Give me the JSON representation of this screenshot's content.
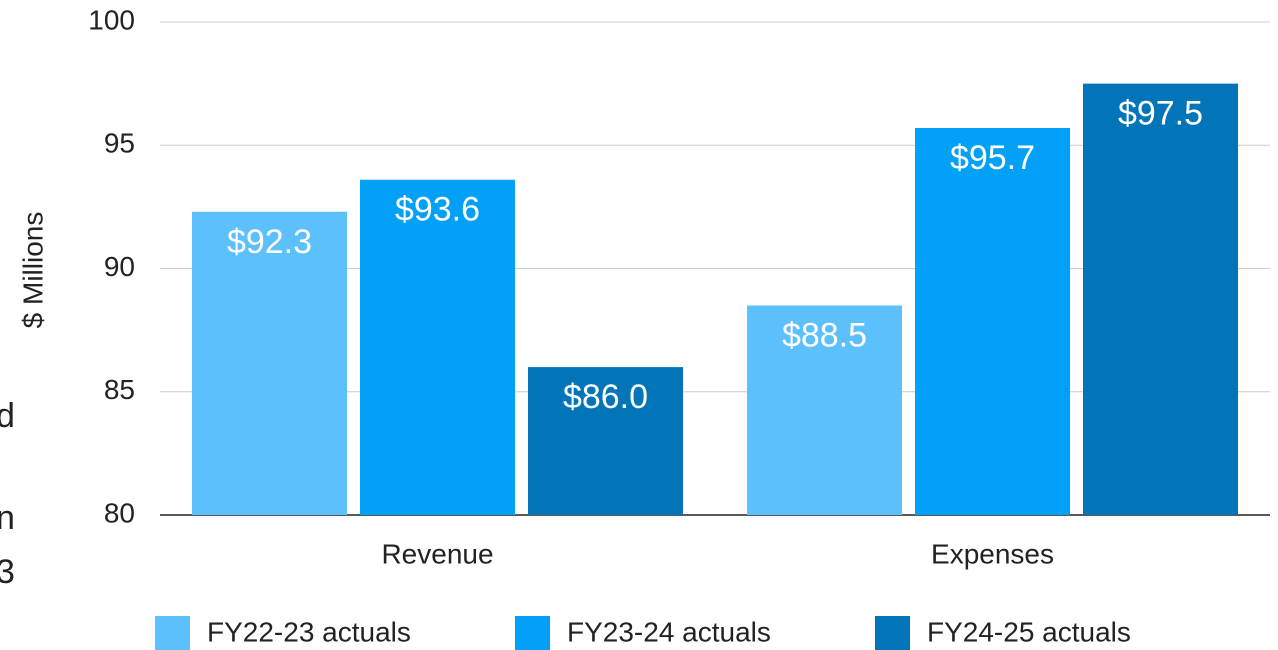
{
  "chart_data": {
    "type": "bar",
    "y_label": "$ Millions",
    "categories": [
      "Revenue",
      "Expenses"
    ],
    "series": [
      {
        "name": "FY22-23 actuals",
        "color": "#5bc0fb",
        "values": [
          92.3,
          88.5
        ],
        "value_labels": [
          "$92.3",
          "$88.5"
        ]
      },
      {
        "name": "FY23-24 actuals",
        "color": "#03a0f7",
        "values": [
          93.6,
          95.7
        ],
        "value_labels": [
          "$93.6",
          "$95.7"
        ]
      },
      {
        "name": "FY24-25 actuals",
        "color": "#0275b8",
        "values": [
          86.0,
          97.5
        ],
        "value_labels": [
          "$86.0",
          "$97.5"
        ]
      }
    ],
    "ylim": [
      80,
      100
    ],
    "yticks": [
      80,
      85,
      90,
      95,
      100
    ],
    "grid": true,
    "legend": "bottom"
  },
  "side_text": [
    "d",
    "n",
    "3"
  ]
}
